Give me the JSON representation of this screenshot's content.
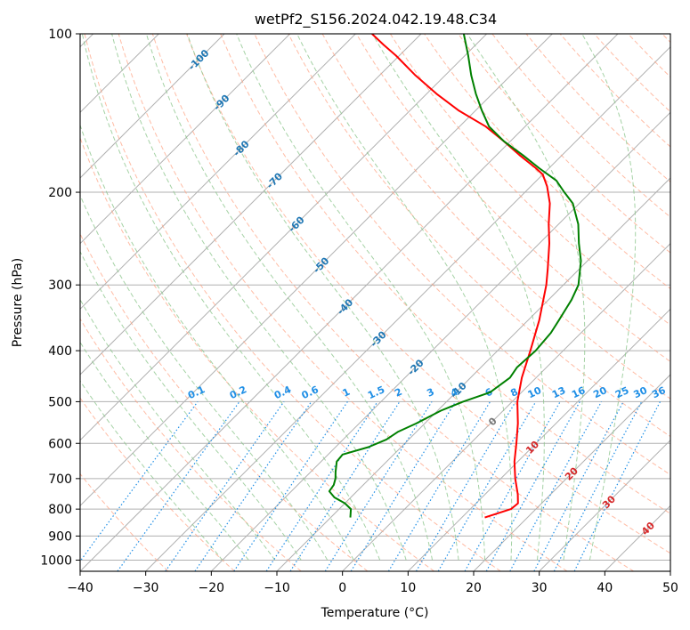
{
  "chart_data": {
    "type": "skew-t",
    "title": "wetPf2_S156.2024.042.19.48.C34",
    "xlabel": "Temperature (°C)",
    "ylabel": "Pressure (hPa)",
    "xlim": [
      -40,
      50
    ],
    "ylim": [
      1050,
      100
    ],
    "x_ticks": [
      -40,
      -30,
      -20,
      -10,
      0,
      10,
      20,
      30,
      40,
      50
    ],
    "y_ticks": [
      100,
      200,
      300,
      400,
      500,
      600,
      700,
      800,
      900,
      1000
    ],
    "grid": true,
    "series": [
      {
        "key": "temperature",
        "color": "#ff0000",
        "points": [
          [
            830,
            13.5
          ],
          [
            800,
            16.2
          ],
          [
            780,
            16.4
          ],
          [
            750,
            15.0
          ],
          [
            700,
            12.2
          ],
          [
            650,
            9.5
          ],
          [
            600,
            7.0
          ],
          [
            550,
            4.2
          ],
          [
            500,
            0.8
          ],
          [
            450,
            -2.2
          ],
          [
            400,
            -5.0
          ],
          [
            350,
            -8.3
          ],
          [
            320,
            -10.8
          ],
          [
            300,
            -12.6
          ],
          [
            280,
            -14.8
          ],
          [
            250,
            -18.5
          ],
          [
            230,
            -21.5
          ],
          [
            210,
            -24.5
          ],
          [
            195,
            -27.5
          ],
          [
            185,
            -30.0
          ],
          [
            180,
            -32.0
          ],
          [
            170,
            -36.5
          ],
          [
            160,
            -41.0
          ],
          [
            150,
            -46.0
          ],
          [
            140,
            -52.5
          ],
          [
            130,
            -58.5
          ],
          [
            120,
            -64.5
          ],
          [
            110,
            -70.5
          ],
          [
            105,
            -74.0
          ],
          [
            100,
            -77.5
          ]
        ]
      },
      {
        "key": "dewpoint",
        "color": "#008000",
        "points": [
          [
            830,
            -7.0
          ],
          [
            820,
            -7.4
          ],
          [
            800,
            -8.2
          ],
          [
            780,
            -10.0
          ],
          [
            760,
            -12.5
          ],
          [
            740,
            -14.2
          ],
          [
            720,
            -14.5
          ],
          [
            700,
            -15.2
          ],
          [
            680,
            -16.2
          ],
          [
            650,
            -17.6
          ],
          [
            630,
            -17.8
          ],
          [
            610,
            -15.0
          ],
          [
            590,
            -13.4
          ],
          [
            570,
            -12.8
          ],
          [
            550,
            -11.3
          ],
          [
            520,
            -9.5
          ],
          [
            500,
            -7.5
          ],
          [
            480,
            -4.8
          ],
          [
            450,
            -4.0
          ],
          [
            430,
            -4.5
          ],
          [
            400,
            -4.2
          ],
          [
            370,
            -4.6
          ],
          [
            350,
            -5.3
          ],
          [
            320,
            -6.5
          ],
          [
            300,
            -7.7
          ],
          [
            270,
            -11.0
          ],
          [
            250,
            -14.0
          ],
          [
            230,
            -17.0
          ],
          [
            210,
            -21.0
          ],
          [
            200,
            -24.0
          ],
          [
            190,
            -27.0
          ],
          [
            180,
            -31.5
          ],
          [
            170,
            -36.0
          ],
          [
            160,
            -41.0
          ],
          [
            150,
            -45.5
          ],
          [
            140,
            -49.0
          ],
          [
            130,
            -52.5
          ],
          [
            120,
            -56.0
          ],
          [
            110,
            -59.5
          ],
          [
            100,
            -63.5
          ]
        ]
      }
    ],
    "isotherm_labels": [
      "-100",
      "-90",
      "-80",
      "-70",
      "-60",
      "-50",
      "-40",
      "-30",
      "-20",
      "-10",
      "0",
      "10",
      "20",
      "30",
      "40"
    ],
    "mixing_ratio_labels": [
      "0.1",
      "0.2",
      "0.4",
      "0.6",
      "1",
      "1.5",
      "2",
      "3",
      "4",
      "6",
      "8",
      "10",
      "13",
      "16",
      "20",
      "25",
      "30",
      "36"
    ],
    "colors": {
      "temperature": "#ff0000",
      "dewpoint": "#008000",
      "dry_adiabat": "#ff9f7f",
      "moist_adiabat": "#8fc78f",
      "mixing_ratio": "#1f8fe6",
      "isotherm_label_cold": "#1f77b4",
      "isotherm_label_warm": "#d62728",
      "isotherm_label_zero": "#777777",
      "grid": "#b0b0b0"
    }
  }
}
